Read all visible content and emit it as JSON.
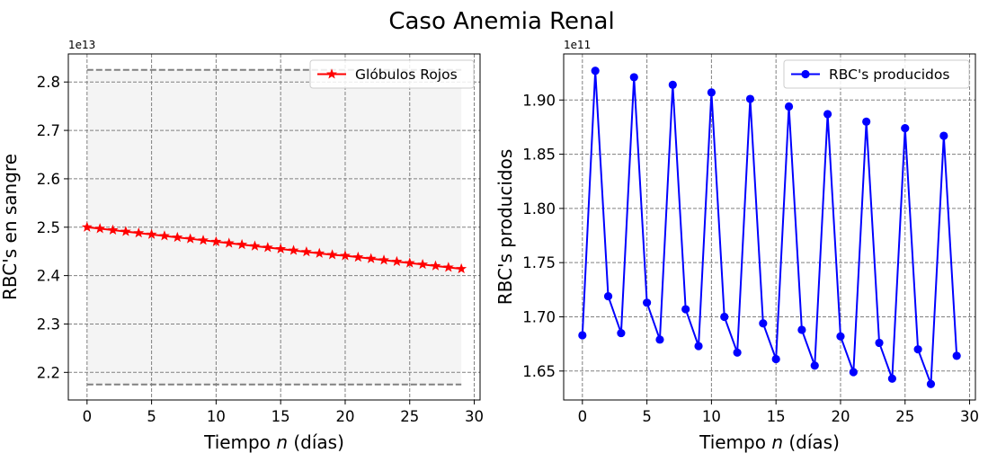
{
  "figure": {
    "title": "Caso Anemia Renal"
  },
  "chart_data": [
    {
      "type": "line",
      "xlabel_prefix": "Tiempo ",
      "xlabel_var": "n",
      "xlabel_suffix": " (días)",
      "ylabel": "RBC's en sangre",
      "offset_text": "1e13",
      "scale": 10000000000000.0,
      "xlim": [
        -1.45,
        30.45
      ],
      "ylim": [
        2.143,
        2.858
      ],
      "xticks": [
        0,
        5,
        10,
        15,
        20,
        25,
        30
      ],
      "yticks": [
        2.2,
        2.3,
        2.4,
        2.5,
        2.6,
        2.7,
        2.8
      ],
      "ytick_labels": [
        "2.2",
        "2.3",
        "2.4",
        "2.5",
        "2.6",
        "2.7",
        "2.8"
      ],
      "grid": true,
      "legend_position": "top-right",
      "shaded_band": {
        "x": [
          0,
          29
        ],
        "y": [
          2.175,
          2.825
        ],
        "color": "#f4f4f4"
      },
      "reference_lines": [
        {
          "y": 2.825,
          "x": [
            0,
            29
          ],
          "style": "dashed",
          "color": "#808080"
        },
        {
          "y": 2.175,
          "x": [
            0,
            29
          ],
          "style": "dashed",
          "color": "#808080"
        }
      ],
      "series": [
        {
          "name": "Glóbulos Rojos",
          "color": "#ff0000",
          "marker": "star",
          "x": [
            0,
            1,
            2,
            3,
            4,
            5,
            6,
            7,
            8,
            9,
            10,
            11,
            12,
            13,
            14,
            15,
            16,
            17,
            18,
            19,
            20,
            21,
            22,
            23,
            24,
            25,
            26,
            27,
            28,
            29
          ],
          "y": [
            2.5,
            2.497,
            2.494,
            2.491,
            2.488,
            2.485,
            2.482,
            2.479,
            2.476,
            2.473,
            2.47,
            2.467,
            2.464,
            2.461,
            2.458,
            2.455,
            2.452,
            2.449,
            2.446,
            2.443,
            2.441,
            2.438,
            2.435,
            2.432,
            2.429,
            2.426,
            2.423,
            2.42,
            2.417,
            2.414
          ]
        }
      ]
    },
    {
      "type": "line",
      "xlabel_prefix": "Tiempo ",
      "xlabel_var": "n",
      "xlabel_suffix": " (días)",
      "ylabel": "RBC's producidos",
      "offset_text": "1e11",
      "scale": 100000000000.0,
      "xlim": [
        -1.45,
        30.45
      ],
      "ylim": [
        1.6233,
        1.9425
      ],
      "xticks": [
        0,
        5,
        10,
        15,
        20,
        25,
        30
      ],
      "yticks": [
        1.65,
        1.7,
        1.75,
        1.8,
        1.85,
        1.9
      ],
      "ytick_labels": [
        "1.65",
        "1.70",
        "1.75",
        "1.80",
        "1.85",
        "1.90"
      ],
      "grid": true,
      "legend_position": "top-right",
      "series": [
        {
          "name": "RBC's producidos",
          "color": "#0000ff",
          "marker": "circle",
          "x": [
            0,
            1,
            2,
            3,
            4,
            5,
            6,
            7,
            8,
            9,
            10,
            11,
            12,
            13,
            14,
            15,
            16,
            17,
            18,
            19,
            20,
            21,
            22,
            23,
            24,
            25,
            26,
            27,
            28,
            29
          ],
          "y": [
            1.683,
            1.927,
            1.719,
            1.685,
            1.921,
            1.713,
            1.679,
            1.914,
            1.707,
            1.673,
            1.907,
            1.7,
            1.667,
            1.901,
            1.694,
            1.661,
            1.894,
            1.688,
            1.655,
            1.887,
            1.682,
            1.649,
            1.88,
            1.676,
            1.643,
            1.874,
            1.67,
            1.638,
            1.867,
            1.664
          ]
        }
      ]
    }
  ]
}
